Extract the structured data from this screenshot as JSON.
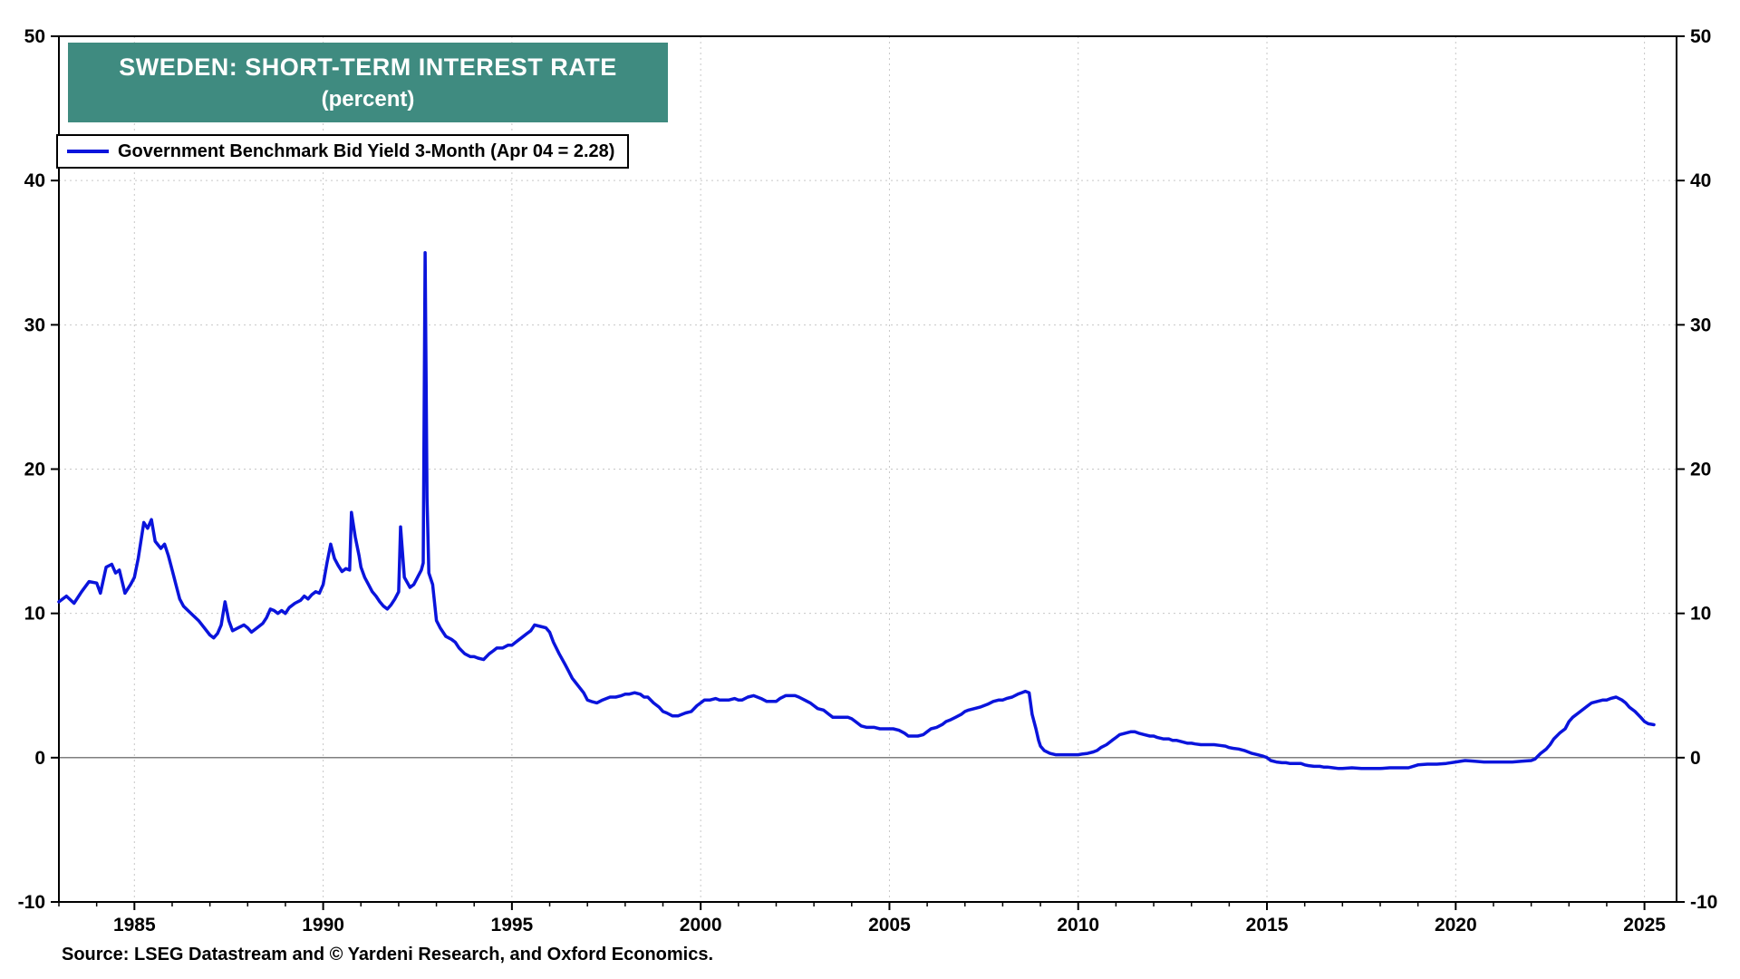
{
  "chart_data": {
    "type": "line",
    "title": "SWEDEN: SHORT-TERM INTEREST RATE",
    "subtitle": "(percent)",
    "legend": "Government Benchmark Bid Yield 3-Month (Apr 04 = 2.28)",
    "source": "Source: LSEG Datastream and © Yardeni Research, and Oxford Economics.",
    "line_color": "#0a14dc",
    "title_bg": "#3f8b80",
    "grid_color": "#c7c7c7",
    "axis_color": "#000000",
    "zero_line_color": "#555555",
    "x_range": [
      1983.0,
      2025.85
    ],
    "y_range": [
      -10,
      50
    ],
    "y_ticks": [
      -10,
      0,
      10,
      20,
      30,
      40,
      50
    ],
    "x_ticks": [
      1985,
      1990,
      1995,
      2000,
      2005,
      2010,
      2015,
      2020,
      2025
    ],
    "legend_note_value": "2.28",
    "series": [
      {
        "name": "Government Benchmark Bid Yield 3-Month",
        "x": [
          1983.0,
          1983.2,
          1983.4,
          1983.6,
          1983.8,
          1984.0,
          1984.1,
          1984.25,
          1984.4,
          1984.5,
          1984.6,
          1984.75,
          1984.9,
          1985.0,
          1985.1,
          1985.25,
          1985.35,
          1985.45,
          1985.55,
          1985.7,
          1985.8,
          1985.9,
          1986.0,
          1986.1,
          1986.2,
          1986.3,
          1986.5,
          1986.7,
          1986.85,
          1987.0,
          1987.1,
          1987.2,
          1987.3,
          1987.4,
          1987.5,
          1987.6,
          1987.75,
          1987.9,
          1988.0,
          1988.1,
          1988.25,
          1988.4,
          1988.5,
          1988.6,
          1988.7,
          1988.8,
          1988.9,
          1989.0,
          1989.1,
          1989.25,
          1989.4,
          1989.5,
          1989.6,
          1989.7,
          1989.8,
          1989.9,
          1990.0,
          1990.1,
          1990.2,
          1990.3,
          1990.4,
          1990.5,
          1990.6,
          1990.7,
          1990.75,
          1990.85,
          1990.95,
          1991.0,
          1991.1,
          1991.2,
          1991.3,
          1991.4,
          1991.5,
          1991.6,
          1991.7,
          1991.8,
          1991.9,
          1992.0,
          1992.05,
          1992.15,
          1992.3,
          1992.4,
          1992.5,
          1992.6,
          1992.65,
          1992.7,
          1992.75,
          1992.8,
          1992.9,
          1993.0,
          1993.1,
          1993.25,
          1993.4,
          1993.5,
          1993.6,
          1993.75,
          1993.9,
          1994.0,
          1994.1,
          1994.25,
          1994.4,
          1994.5,
          1994.6,
          1994.75,
          1994.9,
          1995.0,
          1995.1,
          1995.25,
          1995.4,
          1995.5,
          1995.6,
          1995.75,
          1995.9,
          1996.0,
          1996.1,
          1996.25,
          1996.4,
          1996.5,
          1996.6,
          1996.75,
          1996.9,
          1997.0,
          1997.1,
          1997.25,
          1997.4,
          1997.5,
          1997.6,
          1997.75,
          1997.9,
          1998.0,
          1998.1,
          1998.25,
          1998.4,
          1998.5,
          1998.6,
          1998.75,
          1998.9,
          1999.0,
          1999.1,
          1999.25,
          1999.4,
          1999.5,
          1999.6,
          1999.75,
          1999.9,
          2000.0,
          2000.1,
          2000.25,
          2000.4,
          2000.5,
          2000.6,
          2000.75,
          2000.9,
          2001.0,
          2001.1,
          2001.25,
          2001.4,
          2001.5,
          2001.6,
          2001.75,
          2001.9,
          2002.0,
          2002.1,
          2002.25,
          2002.4,
          2002.5,
          2002.6,
          2002.75,
          2002.9,
          2003.0,
          2003.1,
          2003.25,
          2003.4,
          2003.5,
          2003.6,
          2003.75,
          2003.9,
          2004.0,
          2004.1,
          2004.25,
          2004.4,
          2004.5,
          2004.6,
          2004.75,
          2004.9,
          2005.0,
          2005.1,
          2005.25,
          2005.4,
          2005.5,
          2005.6,
          2005.75,
          2005.9,
          2006.0,
          2006.1,
          2006.25,
          2006.4,
          2006.5,
          2006.6,
          2006.75,
          2006.9,
          2007.0,
          2007.1,
          2007.25,
          2007.4,
          2007.5,
          2007.6,
          2007.75,
          2007.9,
          2008.0,
          2008.1,
          2008.25,
          2008.4,
          2008.5,
          2008.6,
          2008.7,
          2008.78,
          2008.88,
          2008.95,
          2009.0,
          2009.1,
          2009.25,
          2009.4,
          2009.5,
          2009.6,
          2009.75,
          2009.9,
          2010.0,
          2010.1,
          2010.25,
          2010.4,
          2010.5,
          2010.6,
          2010.75,
          2010.9,
          2011.0,
          2011.1,
          2011.25,
          2011.4,
          2011.5,
          2011.6,
          2011.75,
          2011.9,
          2012.0,
          2012.1,
          2012.25,
          2012.4,
          2012.5,
          2012.6,
          2012.75,
          2012.9,
          2013.0,
          2013.1,
          2013.25,
          2013.4,
          2013.5,
          2013.6,
          2013.75,
          2013.9,
          2014.0,
          2014.1,
          2014.25,
          2014.4,
          2014.5,
          2014.6,
          2014.75,
          2014.9,
          2015.0,
          2015.1,
          2015.25,
          2015.4,
          2015.5,
          2015.6,
          2015.75,
          2015.9,
          2016.0,
          2016.1,
          2016.25,
          2016.4,
          2016.5,
          2016.6,
          2016.75,
          2016.9,
          2017.0,
          2017.25,
          2017.5,
          2017.75,
          2018.0,
          2018.25,
          2018.5,
          2018.75,
          2019.0,
          2019.25,
          2019.5,
          2019.75,
          2020.0,
          2020.25,
          2020.5,
          2020.75,
          2021.0,
          2021.25,
          2021.5,
          2021.75,
          2022.0,
          2022.1,
          2022.25,
          2022.4,
          2022.5,
          2022.6,
          2022.75,
          2022.9,
          2023.0,
          2023.1,
          2023.25,
          2023.4,
          2023.5,
          2023.6,
          2023.75,
          2023.9,
          2024.0,
          2024.1,
          2024.25,
          2024.4,
          2024.5,
          2024.6,
          2024.75,
          2024.9,
          2025.0,
          2025.1,
          2025.25
        ],
        "y": [
          10.8,
          11.2,
          10.7,
          11.5,
          12.2,
          12.1,
          11.4,
          13.2,
          13.4,
          12.8,
          13.0,
          11.4,
          12.0,
          12.5,
          13.8,
          16.3,
          15.9,
          16.5,
          15.0,
          14.5,
          14.8,
          14.0,
          13.0,
          12.0,
          11.0,
          10.5,
          10.0,
          9.5,
          9.0,
          8.5,
          8.3,
          8.6,
          9.2,
          10.8,
          9.5,
          8.8,
          9.0,
          9.2,
          9.0,
          8.7,
          9.0,
          9.3,
          9.7,
          10.3,
          10.2,
          10.0,
          10.2,
          10.0,
          10.4,
          10.7,
          10.9,
          11.2,
          11.0,
          11.3,
          11.5,
          11.4,
          12.0,
          13.5,
          14.8,
          13.8,
          13.3,
          12.9,
          13.1,
          13.0,
          17.0,
          15.3,
          14.0,
          13.2,
          12.5,
          12.0,
          11.5,
          11.2,
          10.8,
          10.5,
          10.3,
          10.6,
          11.0,
          11.5,
          16.0,
          12.5,
          11.8,
          12.0,
          12.5,
          13.0,
          13.5,
          35.0,
          18.0,
          12.8,
          12.0,
          9.5,
          9.0,
          8.4,
          8.2,
          8.0,
          7.6,
          7.2,
          7.0,
          7.0,
          6.9,
          6.8,
          7.2,
          7.4,
          7.6,
          7.6,
          7.8,
          7.8,
          8.0,
          8.3,
          8.6,
          8.8,
          9.2,
          9.1,
          9.0,
          8.7,
          8.0,
          7.2,
          6.5,
          6.0,
          5.5,
          5.0,
          4.5,
          4.0,
          3.9,
          3.8,
          4.0,
          4.1,
          4.2,
          4.2,
          4.3,
          4.4,
          4.4,
          4.5,
          4.4,
          4.2,
          4.2,
          3.8,
          3.5,
          3.2,
          3.1,
          2.9,
          2.9,
          3.0,
          3.1,
          3.2,
          3.6,
          3.8,
          4.0,
          4.0,
          4.1,
          4.0,
          4.0,
          4.0,
          4.1,
          4.0,
          4.0,
          4.2,
          4.3,
          4.2,
          4.1,
          3.9,
          3.9,
          3.9,
          4.1,
          4.3,
          4.3,
          4.3,
          4.2,
          4.0,
          3.8,
          3.6,
          3.4,
          3.3,
          3.0,
          2.8,
          2.8,
          2.8,
          2.8,
          2.7,
          2.5,
          2.2,
          2.1,
          2.1,
          2.1,
          2.0,
          2.0,
          2.0,
          2.0,
          1.9,
          1.7,
          1.5,
          1.5,
          1.5,
          1.6,
          1.8,
          2.0,
          2.1,
          2.3,
          2.5,
          2.6,
          2.8,
          3.0,
          3.2,
          3.3,
          3.4,
          3.5,
          3.6,
          3.7,
          3.9,
          4.0,
          4.0,
          4.1,
          4.2,
          4.4,
          4.5,
          4.6,
          4.5,
          3.0,
          2.0,
          1.2,
          0.8,
          0.5,
          0.3,
          0.2,
          0.2,
          0.2,
          0.2,
          0.2,
          0.2,
          0.25,
          0.3,
          0.4,
          0.5,
          0.7,
          0.9,
          1.2,
          1.4,
          1.6,
          1.7,
          1.8,
          1.8,
          1.7,
          1.6,
          1.5,
          1.5,
          1.4,
          1.3,
          1.3,
          1.2,
          1.2,
          1.1,
          1.0,
          1.0,
          0.95,
          0.9,
          0.9,
          0.9,
          0.9,
          0.85,
          0.8,
          0.7,
          0.65,
          0.6,
          0.5,
          0.4,
          0.3,
          0.2,
          0.1,
          0.0,
          -0.2,
          -0.3,
          -0.35,
          -0.35,
          -0.4,
          -0.4,
          -0.4,
          -0.5,
          -0.55,
          -0.6,
          -0.6,
          -0.65,
          -0.65,
          -0.7,
          -0.75,
          -0.75,
          -0.7,
          -0.75,
          -0.75,
          -0.75,
          -0.7,
          -0.7,
          -0.7,
          -0.5,
          -0.45,
          -0.45,
          -0.4,
          -0.3,
          -0.2,
          -0.25,
          -0.3,
          -0.3,
          -0.3,
          -0.3,
          -0.25,
          -0.2,
          -0.1,
          0.3,
          0.6,
          0.9,
          1.3,
          1.7,
          2.0,
          2.5,
          2.8,
          3.1,
          3.4,
          3.6,
          3.8,
          3.9,
          4.0,
          4.0,
          4.1,
          4.2,
          4.0,
          3.8,
          3.5,
          3.2,
          2.8,
          2.5,
          2.35,
          2.28
        ]
      }
    ]
  }
}
